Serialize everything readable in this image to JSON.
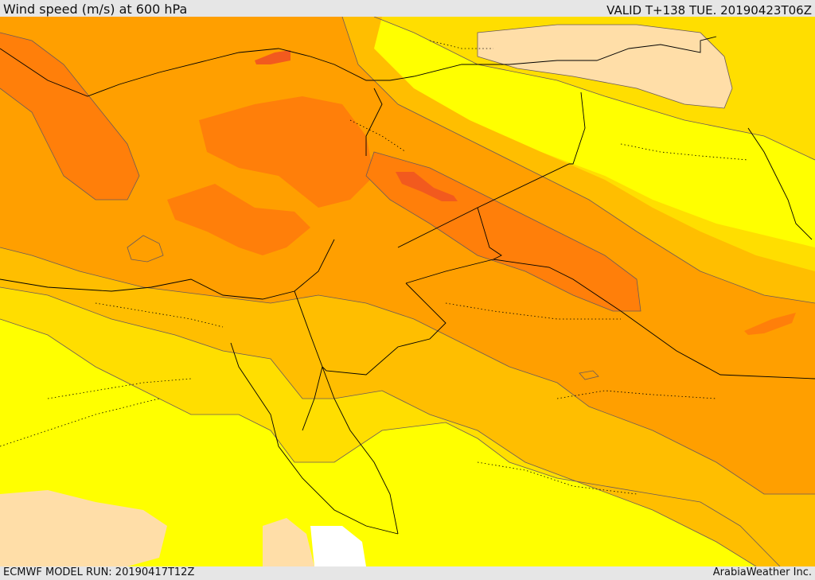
{
  "header": {
    "title": "Wind speed (m/s) at 600 hPa",
    "valid": "VALID T+138 TUE. 20190423T06Z"
  },
  "footer": {
    "model_run": "ECMWF MODEL RUN: 20190417T12Z",
    "brand": "ArabiaWeather Inc."
  },
  "map": {
    "palette": {
      "band_lowest": "#ffffff",
      "band_light": "#ffdea8",
      "band_yellow": "#ffff00",
      "band_gold": "#ffde00",
      "band_amber": "#ffbe00",
      "band_orange": "#ff9f00",
      "band_dark_orange": "#ff7f0a",
      "band_red_orange": "#f25a1e",
      "contour_line": "#6b5a5a",
      "border_line": "#000000"
    }
  }
}
